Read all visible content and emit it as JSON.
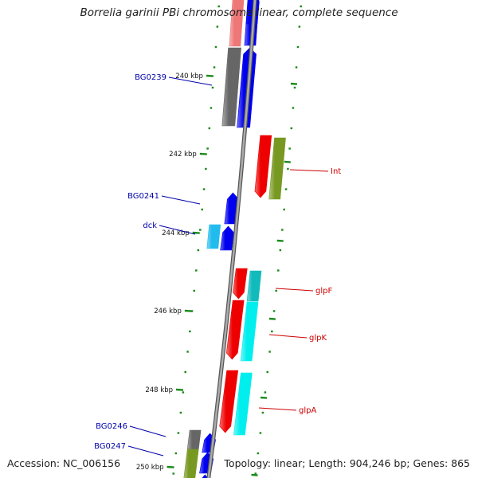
{
  "title": "Borrelia garinii PBi chromosome linear, complete sequence",
  "footer": {
    "accession": "Accession: NC_006156",
    "topology": "Topology: linear; Length: 904,246 bp; Genes: 865"
  },
  "colors": {
    "backbone": "#8a8a8a",
    "tick": "#1a8a1a",
    "blue": "#0000ee",
    "red": "#ee0000",
    "cyan": "#00eeee",
    "sky": "#22bbee",
    "gray": "#666666",
    "olive": "#779922",
    "pink": "#ee7777",
    "teal": "#11bbbb"
  },
  "ticks": [
    {
      "label": "240 kbp"
    },
    {
      "label": "242 kbp"
    },
    {
      "label": "244 kbp"
    },
    {
      "label": "246 kbp"
    },
    {
      "label": "248 kbp"
    },
    {
      "label": "250 kbp"
    }
  ],
  "gene_labels": [
    {
      "text": "BG0239",
      "color": "#0000aa"
    },
    {
      "text": "BG0241",
      "color": "#0000aa"
    },
    {
      "text": "dck",
      "color": "#0000aa"
    },
    {
      "text": "BG0246",
      "color": "#0000aa"
    },
    {
      "text": "BG0247",
      "color": "#0000aa"
    },
    {
      "text": "Int",
      "color": "#cc0000"
    },
    {
      "text": "glpF",
      "color": "#cc0000"
    },
    {
      "text": "glpK",
      "color": "#cc0000"
    },
    {
      "text": "glpA",
      "color": "#cc0000"
    }
  ]
}
